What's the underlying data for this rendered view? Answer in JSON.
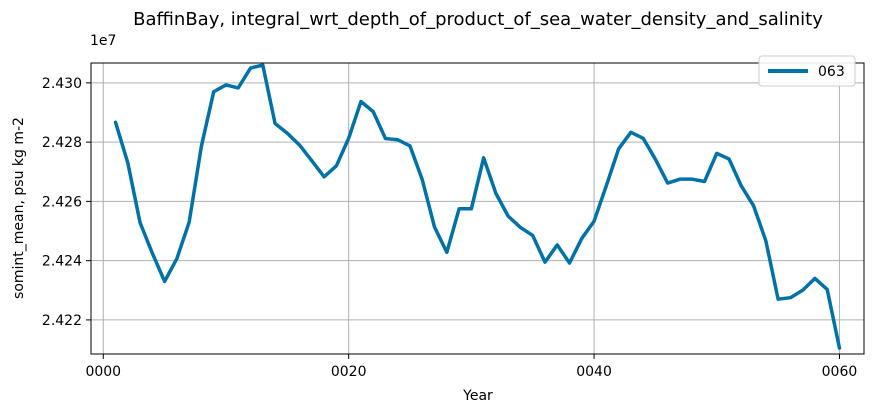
{
  "chart_data": {
    "type": "line",
    "title": "BaffinBay, integral_wrt_depth_of_product_of_sea_water_density_and_salinity",
    "xlabel": "Year",
    "ylabel": "somint_mean, psu kg m-2",
    "y_offset_label": "1e7",
    "xlim": [
      -1.0,
      62.0
    ],
    "ylim": [
      2.42085,
      2.43067
    ],
    "x_ticks": [
      0,
      20,
      40,
      60
    ],
    "x_tick_labels": [
      "0000",
      "0020",
      "0040",
      "0060"
    ],
    "y_ticks": [
      2.422,
      2.424,
      2.426,
      2.428,
      2.43
    ],
    "y_tick_labels": [
      "2.422",
      "2.424",
      "2.426",
      "2.428",
      "2.430"
    ],
    "grid": true,
    "legend_position": "top-right",
    "series": [
      {
        "name": "063",
        "color": "#0072a8",
        "x": [
          1,
          2,
          3,
          4,
          5,
          6,
          7,
          8,
          9,
          10,
          11,
          12,
          13,
          14,
          15,
          16,
          17,
          18,
          19,
          20,
          21,
          22,
          23,
          24,
          25,
          26,
          27,
          28,
          29,
          30,
          31,
          32,
          33,
          34,
          35,
          36,
          37,
          38,
          39,
          40,
          41,
          42,
          43,
          44,
          45,
          46,
          47,
          48,
          49,
          50,
          51,
          52,
          53,
          54,
          55,
          56,
          57,
          58,
          59,
          60
        ],
        "values": [
          2.42867,
          2.4273,
          2.42528,
          2.42425,
          2.4233,
          2.42407,
          2.4253,
          2.42787,
          2.4297,
          2.42993,
          2.42983,
          2.4305,
          2.4306,
          2.42863,
          2.4283,
          2.4279,
          2.42737,
          2.42683,
          2.4272,
          2.42813,
          2.42937,
          2.42903,
          2.42812,
          2.42808,
          2.42787,
          2.42673,
          2.42513,
          2.42428,
          2.42575,
          2.42575,
          2.42747,
          2.42627,
          2.4255,
          2.42512,
          2.42485,
          2.42395,
          2.42453,
          2.42392,
          2.42475,
          2.42533,
          2.42653,
          2.42777,
          2.42833,
          2.42813,
          2.42742,
          2.42662,
          2.42675,
          2.42675,
          2.42667,
          2.42762,
          2.42743,
          2.42652,
          2.42585,
          2.42467,
          2.4227,
          2.42275,
          2.423,
          2.4234,
          2.42303,
          2.42105
        ]
      }
    ]
  }
}
